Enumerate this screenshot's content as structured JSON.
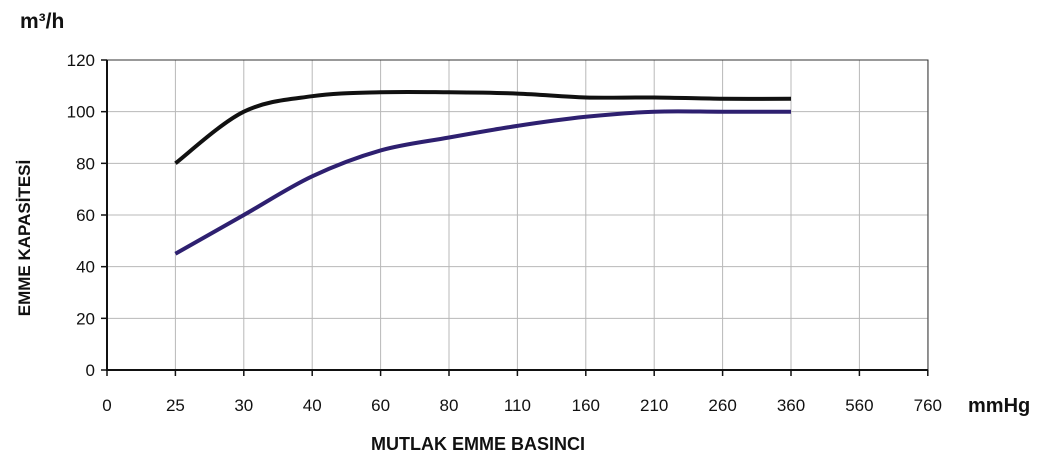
{
  "chart_data": {
    "type": "line",
    "title": "",
    "ylabel": "EMME KAPASİTESİ",
    "xlabel": "MUTLAK EMME BASINCI",
    "y_unit": "m³/h",
    "x_unit": "mmHg",
    "categories": [
      "0",
      "25",
      "30",
      "40",
      "60",
      "80",
      "110",
      "160",
      "210",
      "260",
      "360",
      "560",
      "760"
    ],
    "y_ticks": [
      "0",
      "20",
      "40",
      "60",
      "80",
      "100",
      "120"
    ],
    "ylim": [
      0,
      120
    ],
    "grid": true,
    "colors": {
      "series_1": "#111111",
      "series_2": "#2e2070",
      "grid": "#b8b8b8"
    },
    "series": [
      {
        "values": [
          null,
          80,
          100,
          106,
          107.5,
          107.5,
          107,
          105.5,
          105.5,
          105,
          105,
          null,
          null
        ]
      },
      {
        "values": [
          null,
          45,
          60,
          75,
          85,
          90,
          94.5,
          98,
          100,
          100,
          100,
          null,
          null
        ]
      }
    ]
  }
}
